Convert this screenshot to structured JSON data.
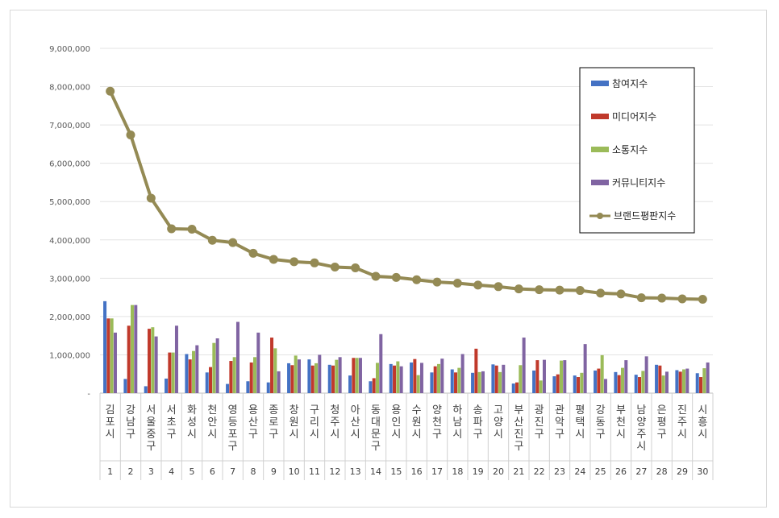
{
  "chart_data": {
    "type": "bar",
    "title": "",
    "ylim": [
      0,
      9000000
    ],
    "y_ticks": [
      "-",
      "1,000,000",
      "2,000,000",
      "3,000,000",
      "4,000,000",
      "5,000,000",
      "6,000,000",
      "7,000,000",
      "8,000,000",
      "9,000,000"
    ],
    "grid": true,
    "legend_position": "top-right",
    "categories": [
      "김포시",
      "강남구",
      "서울 중구",
      "서초구",
      "화성시",
      "천안시",
      "영등포구",
      "용산구",
      "종로구",
      "창원시",
      "구리시",
      "청주시",
      "아산시",
      "동대문구",
      "용인시",
      "수원시",
      "양천구",
      "하남시",
      "송파구",
      "고양시",
      "부산진구",
      "광진구",
      "관악구",
      "평택시",
      "강동구",
      "부천시",
      "남양주시",
      "은평구",
      "진주시",
      "시흥시"
    ],
    "ranks": [
      "1",
      "2",
      "3",
      "4",
      "5",
      "6",
      "7",
      "8",
      "9",
      "10",
      "11",
      "12",
      "13",
      "14",
      "15",
      "16",
      "17",
      "18",
      "19",
      "20",
      "21",
      "22",
      "23",
      "24",
      "25",
      "26",
      "27",
      "28",
      "29",
      "30"
    ],
    "series": [
      {
        "name": "참여지수",
        "color": "#4472c4",
        "values": [
          2400000,
          370000,
          180000,
          380000,
          1020000,
          540000,
          240000,
          310000,
          280000,
          780000,
          880000,
          740000,
          460000,
          310000,
          760000,
          800000,
          540000,
          620000,
          530000,
          750000,
          250000,
          590000,
          440000,
          460000,
          590000,
          550000,
          480000,
          740000,
          600000,
          520000
        ]
      },
      {
        "name": "미디어지수",
        "color": "#c0392b",
        "values": [
          1950000,
          1760000,
          1680000,
          1060000,
          880000,
          680000,
          840000,
          800000,
          1450000,
          730000,
          720000,
          720000,
          920000,
          390000,
          720000,
          890000,
          700000,
          540000,
          1160000,
          720000,
          280000,
          860000,
          490000,
          420000,
          640000,
          470000,
          420000,
          720000,
          560000,
          420000
        ]
      },
      {
        "name": "소통지수",
        "color": "#9bbb59",
        "values": [
          1950000,
          2300000,
          1720000,
          1060000,
          1100000,
          1310000,
          940000,
          940000,
          1170000,
          980000,
          780000,
          870000,
          920000,
          790000,
          830000,
          470000,
          760000,
          660000,
          550000,
          550000,
          730000,
          330000,
          850000,
          530000,
          990000,
          660000,
          580000,
          460000,
          620000,
          650000
        ]
      },
      {
        "name": "커뮤니티지수",
        "color": "#8064a2",
        "values": [
          1580000,
          2300000,
          1480000,
          1760000,
          1250000,
          1430000,
          1860000,
          1580000,
          570000,
          880000,
          1000000,
          940000,
          920000,
          1540000,
          700000,
          790000,
          900000,
          1020000,
          570000,
          740000,
          1450000,
          870000,
          860000,
          1280000,
          370000,
          860000,
          960000,
          560000,
          640000,
          800000
        ]
      }
    ],
    "line_series": {
      "name": "브랜드평판지수",
      "color": "#948a54",
      "values": [
        7880000,
        6740000,
        5090000,
        4290000,
        4280000,
        3990000,
        3930000,
        3650000,
        3490000,
        3430000,
        3400000,
        3290000,
        3270000,
        3050000,
        3020000,
        2960000,
        2900000,
        2870000,
        2820000,
        2780000,
        2720000,
        2700000,
        2690000,
        2680000,
        2610000,
        2590000,
        2490000,
        2480000,
        2460000,
        2450000
      ]
    }
  }
}
